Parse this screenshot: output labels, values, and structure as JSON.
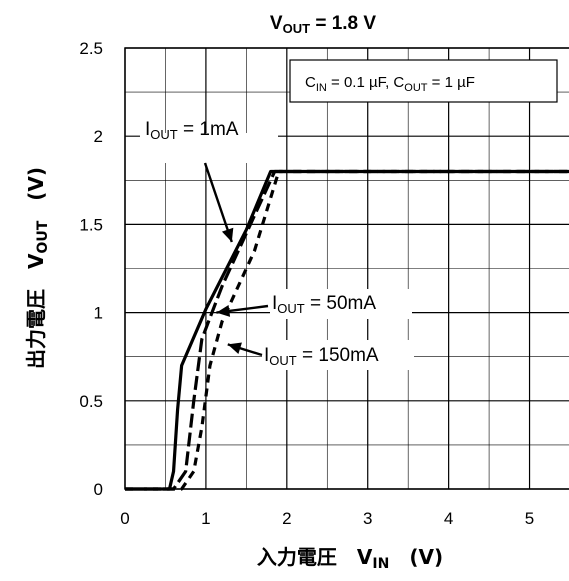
{
  "chart_data": {
    "type": "line",
    "title": "VOUT = 1.8 V",
    "title_parts": [
      {
        "text": "V",
        "sub": false
      },
      {
        "text": "OUT",
        "sub": true
      },
      {
        "text": " = 1.8 V",
        "sub": false
      }
    ],
    "xlabel": "入力電圧　VIN　(V)",
    "xlabel_parts": [
      {
        "text": "入力電圧　V",
        "sub": false
      },
      {
        "text": "IN",
        "sub": true
      },
      {
        "text": "　(V)",
        "sub": false
      }
    ],
    "ylabel": "出力電圧　VOUT　(V)",
    "ylabel_parts": [
      {
        "text": "出力電圧　V",
        "sub": false
      },
      {
        "text": "OUT",
        "sub": true
      },
      {
        "text": "　(V)",
        "sub": false
      }
    ],
    "xlim": [
      0,
      5.5
    ],
    "ylim": [
      0,
      2.5
    ],
    "x_ticks": [
      "0",
      "1",
      "2",
      "3",
      "4",
      "5"
    ],
    "y_ticks": [
      "0",
      "0.5",
      "1",
      "1.5",
      "2",
      "2.5"
    ],
    "grid": true,
    "conditions": "CIN = 0.1 µF, COUT = 1 µF",
    "conditions_parts": [
      {
        "text": "C",
        "sub": false
      },
      {
        "text": "IN",
        "sub": true
      },
      {
        "text": " = 0.1 µF, C",
        "sub": false
      },
      {
        "text": "OUT",
        "sub": true
      },
      {
        "text": " = 1 µF",
        "sub": false
      }
    ],
    "series": [
      {
        "name": "IOUT = 1mA",
        "style": "solid",
        "x": [
          0,
          0.55,
          0.6,
          0.65,
          0.7,
          1.0,
          1.5,
          1.8,
          5.5
        ],
        "y": [
          0,
          0,
          0.1,
          0.45,
          0.7,
          1.02,
          1.47,
          1.8,
          1.8
        ]
      },
      {
        "name": "IOUT = 50mA",
        "style": "longdash",
        "x": [
          0,
          0.6,
          0.75,
          0.85,
          0.95,
          1.2,
          1.5,
          1.85,
          5.5
        ],
        "y": [
          0,
          0,
          0.1,
          0.5,
          0.85,
          1.15,
          1.45,
          1.8,
          1.8
        ]
      },
      {
        "name": "IOUT = 150mA",
        "style": "dash",
        "x": [
          0,
          0.7,
          0.85,
          0.95,
          1.05,
          1.2,
          1.6,
          1.9,
          5.5
        ],
        "y": [
          0,
          0,
          0.1,
          0.35,
          0.7,
          0.95,
          1.35,
          1.8,
          1.8
        ]
      }
    ],
    "annotations": [
      {
        "series": "IOUT = 1mA",
        "parts": [
          {
            "text": "I",
            "sub": false
          },
          {
            "text": "OUT",
            "sub": true
          },
          {
            "text": " = 1mA",
            "sub": false
          }
        ],
        "points_to": [
          1.32,
          1.4
        ]
      },
      {
        "series": "IOUT = 50mA",
        "parts": [
          {
            "text": "I",
            "sub": false
          },
          {
            "text": "OUT",
            "sub": true
          },
          {
            "text": " = 50mA",
            "sub": false
          }
        ],
        "points_to": [
          1.13,
          1.0
        ]
      },
      {
        "series": "IOUT = 150mA",
        "parts": [
          {
            "text": "I",
            "sub": false
          },
          {
            "text": "OUT",
            "sub": true
          },
          {
            "text": " = 150mA",
            "sub": false
          }
        ],
        "points_to": [
          1.27,
          0.82
        ]
      }
    ]
  }
}
